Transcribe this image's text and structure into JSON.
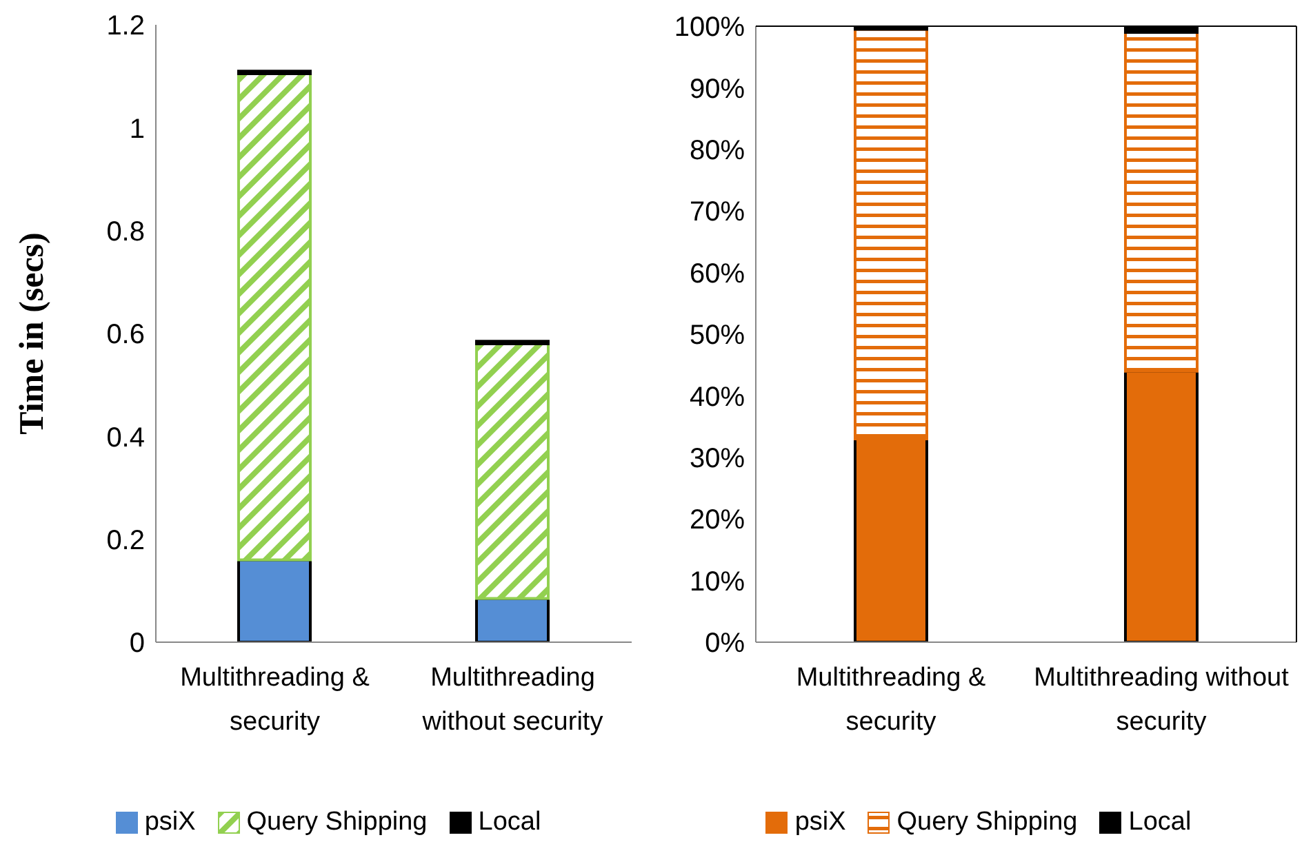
{
  "chart_data": [
    {
      "type": "bar",
      "stacked": true,
      "ylabel": "Time in (secs)",
      "categories": [
        "Multithreading & security",
        "Multithreading without security"
      ],
      "series": [
        {
          "name": "psiX",
          "color": "#558ed5",
          "values": [
            0.16,
            0.085
          ]
        },
        {
          "name": "Query Shipping",
          "color": "#92d050",
          "values": [
            0.945,
            0.495
          ]
        },
        {
          "name": "Local",
          "color": "#000000",
          "values": [
            0.005,
            0.005
          ]
        }
      ],
      "ylim": [
        0,
        1.2
      ],
      "yticks": [
        0,
        0.2,
        0.4,
        0.6,
        0.8,
        1,
        1.2
      ],
      "grid": false,
      "legend": "bottom"
    },
    {
      "type": "bar",
      "stacked": true,
      "categories": [
        "Multithreading & security",
        "Multithreading without security"
      ],
      "series": [
        {
          "name": "psiX",
          "color": "#e36c0a",
          "values": [
            33,
            44
          ]
        },
        {
          "name": "Query Shipping",
          "color": "#e36c0a",
          "values": [
            66.5,
            55
          ]
        },
        {
          "name": "Local",
          "color": "#000000",
          "values": [
            0.5,
            1
          ]
        }
      ],
      "ylim": [
        0,
        100
      ],
      "yticks": [
        {
          "value": 0,
          "label": "0%"
        },
        {
          "value": 10,
          "label": "10%"
        },
        {
          "value": 20,
          "label": "20%"
        },
        {
          "value": 30,
          "label": "30%"
        },
        {
          "value": 40,
          "label": "40%"
        },
        {
          "value": 50,
          "label": "50%"
        },
        {
          "value": 60,
          "label": "60%"
        },
        {
          "value": 70,
          "label": "70%"
        },
        {
          "value": 80,
          "label": "80%"
        },
        {
          "value": 90,
          "label": "90%"
        },
        {
          "value": 100,
          "label": "100%"
        }
      ],
      "grid": false,
      "legend": "bottom"
    }
  ]
}
